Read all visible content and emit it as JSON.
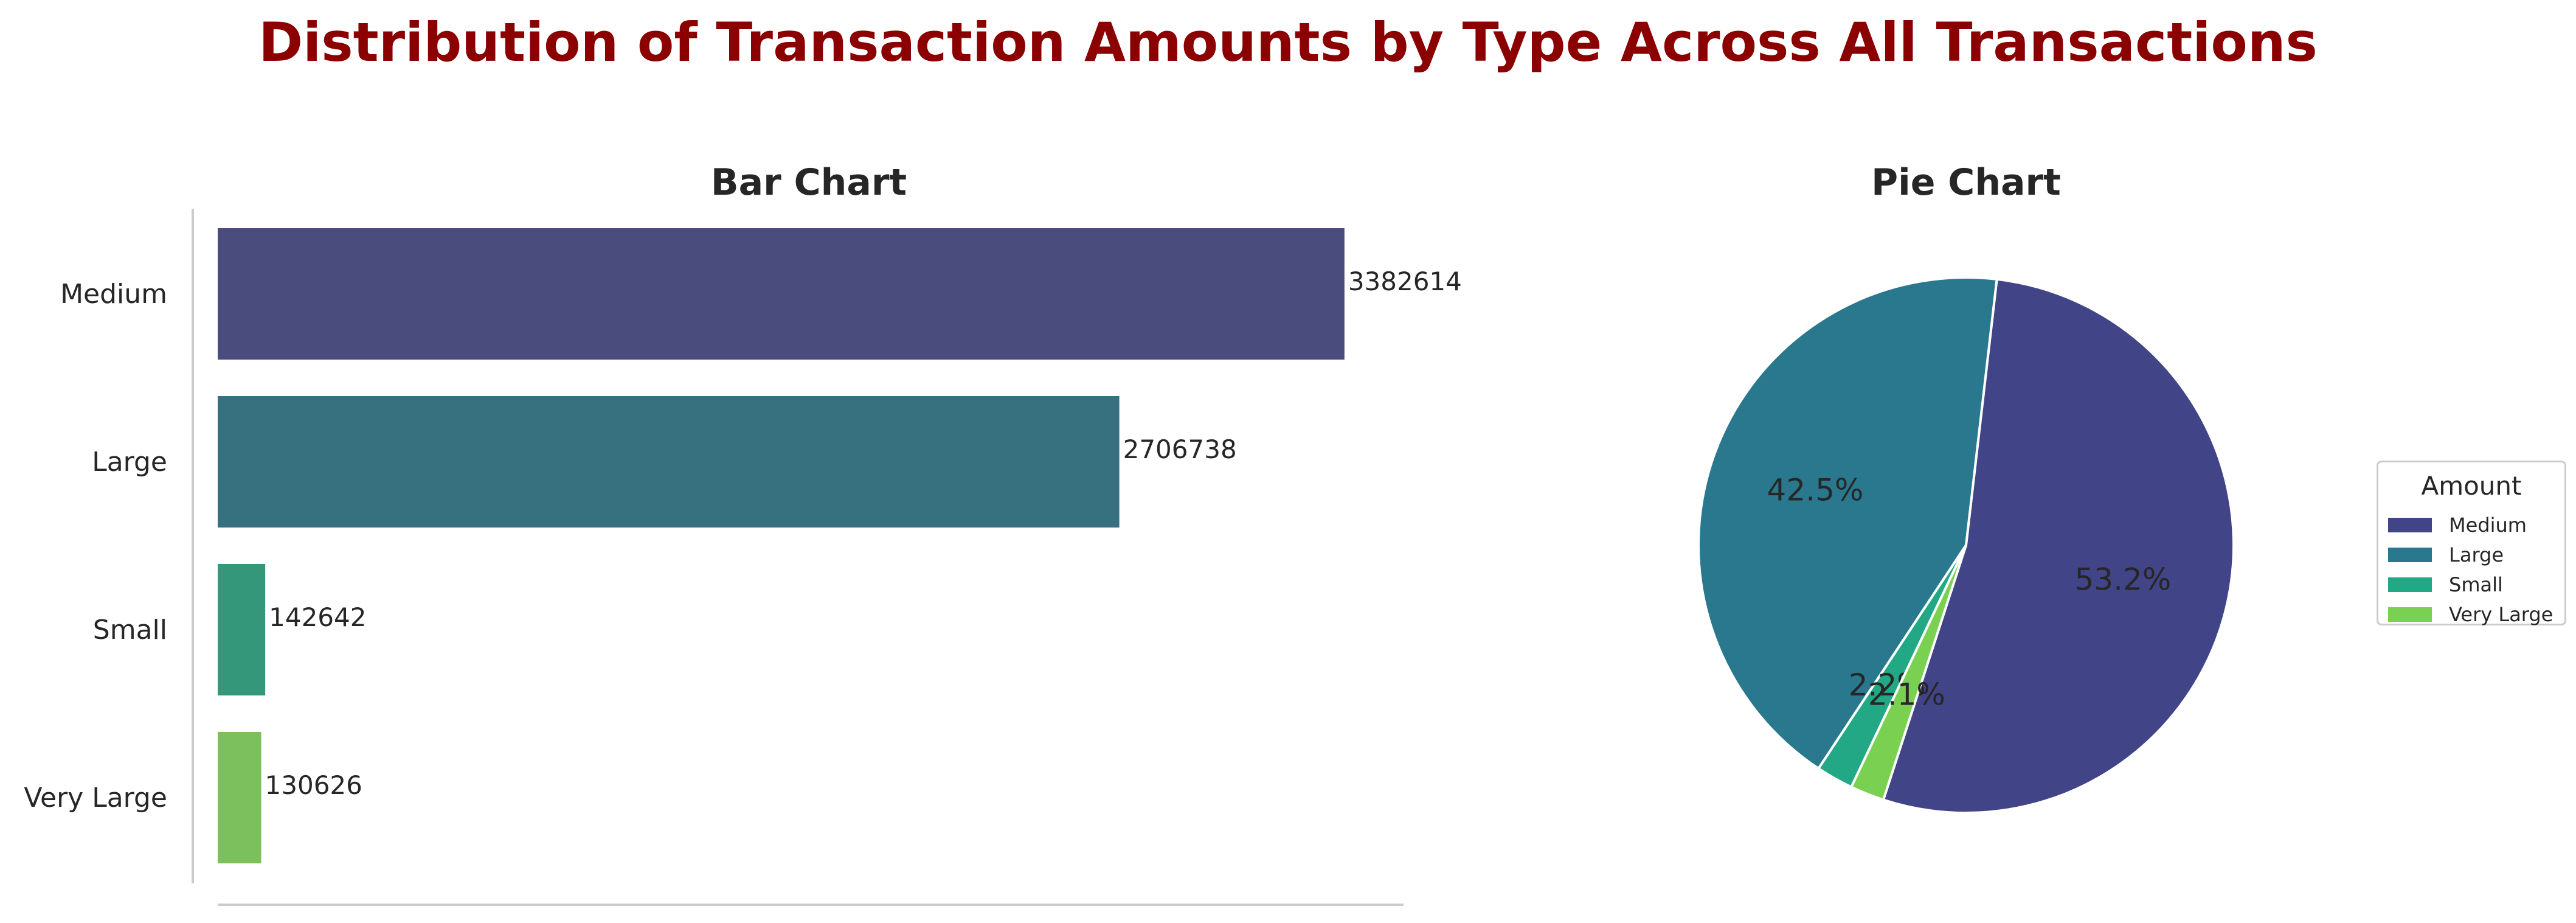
{
  "title": "Distribution of Transaction Amounts by Type Across All Transactions",
  "chart_data": [
    {
      "type": "bar",
      "orientation": "horizontal",
      "title": "Bar Chart",
      "categories": [
        "Medium",
        "Large",
        "Small",
        "Very Large"
      ],
      "values": [
        3382614,
        2706738,
        142642,
        130626
      ],
      "colors": [
        "#4a4c7d",
        "#377180",
        "#35977a",
        "#7cc05e"
      ],
      "xlim": [
        0,
        3560000
      ],
      "grid": false,
      "data_labels": true
    },
    {
      "type": "pie",
      "title": "Pie Chart",
      "categories": [
        "Medium",
        "Large",
        "Small",
        "Very Large"
      ],
      "values": [
        3382614,
        2706738,
        142642,
        130626
      ],
      "percent_labels": [
        "53.2%",
        "42.5%",
        "2.2%",
        "2.1%"
      ],
      "colors": [
        "#414487",
        "#2a788e",
        "#22a884",
        "#7ad151"
      ],
      "legend": {
        "title": "Amount",
        "placement": "center-right",
        "entries": [
          "Medium",
          "Large",
          "Small",
          "Very Large"
        ]
      }
    }
  ]
}
